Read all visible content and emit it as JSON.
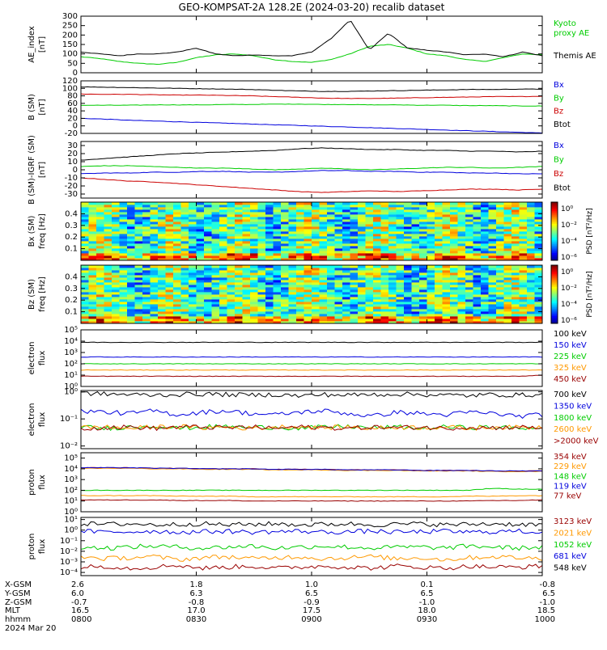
{
  "title": "GEO-KOMPSAT-2A 128.2E (2024-03-20) recalib dataset",
  "colors": {
    "black": "#000000",
    "green": "#00cc00",
    "red": "#cc0000",
    "blue": "#0000dd",
    "orange": "#ff9900",
    "darkred": "#990000",
    "axes": "#000000"
  },
  "chart_data": [
    {
      "id": "ae",
      "type": "line",
      "ylabel": "AE_index\n[nT]",
      "yticks": [
        "300",
        "250",
        "200",
        "150",
        "100",
        "50",
        "0"
      ],
      "ytick_values": [
        300,
        250,
        200,
        150,
        100,
        50,
        0
      ],
      "ylim": [
        0,
        300
      ],
      "x": [
        0,
        5,
        10,
        15,
        20,
        25,
        30,
        35,
        40,
        45,
        50,
        55,
        60,
        65,
        70,
        75,
        80,
        85,
        90,
        95,
        100,
        105,
        110,
        115,
        120
      ],
      "series": [
        {
          "name": "Kyoto\nproxy AE",
          "color": "green",
          "values": [
            85,
            75,
            60,
            50,
            45,
            55,
            80,
            95,
            100,
            90,
            70,
            60,
            55,
            70,
            100,
            140,
            150,
            130,
            100,
            90,
            70,
            60,
            80,
            100,
            95
          ]
        },
        {
          "name": "Themis AE",
          "color": "black",
          "values": [
            110,
            100,
            90,
            100,
            100,
            110,
            130,
            100,
            90,
            95,
            90,
            90,
            110,
            180,
            280,
            120,
            210,
            130,
            120,
            110,
            95,
            100,
            85,
            110,
            90
          ]
        }
      ]
    },
    {
      "id": "bsm",
      "type": "line",
      "ylabel": "B (SM)\n[nT]",
      "yticks": [
        "120",
        "100",
        "80",
        "60",
        "40",
        "20",
        "0",
        "-20"
      ],
      "ytick_values": [
        120,
        100,
        80,
        60,
        40,
        20,
        0,
        -20
      ],
      "ylim": [
        -20,
        120
      ],
      "series": [
        {
          "name": "Bx",
          "color": "blue",
          "values": [
            20,
            18,
            15,
            13,
            11,
            9,
            7,
            5,
            3,
            1,
            -1,
            -3,
            -5,
            -7,
            -9,
            -11,
            -13,
            -15,
            -17,
            -19
          ]
        },
        {
          "name": "By",
          "color": "green",
          "values": [
            55,
            55,
            55,
            56,
            56,
            56,
            57,
            57,
            58,
            58,
            57,
            57,
            56,
            56,
            55,
            55,
            54,
            54,
            53,
            53
          ]
        },
        {
          "name": "Bz",
          "color": "red",
          "values": [
            85,
            84,
            84,
            83,
            82,
            82,
            81,
            80,
            78,
            76,
            74,
            73,
            73,
            74,
            75,
            76,
            77,
            78,
            78,
            79
          ]
        },
        {
          "name": "Btot",
          "color": "black",
          "values": [
            104,
            103,
            102,
            101,
            100,
            99,
            98,
            97,
            95,
            93,
            92,
            92,
            93,
            94,
            95,
            96,
            97,
            97,
            98,
            98
          ]
        }
      ]
    },
    {
      "id": "bdiff",
      "type": "line",
      "ylabel": "B (SM)-IGRF (SM)\n[nT]",
      "yticks": [
        "30",
        "20",
        "10",
        "0",
        "-10",
        "-20",
        "-30"
      ],
      "ytick_values": [
        30,
        20,
        10,
        0,
        -10,
        -20,
        -30
      ],
      "ylim": [
        -35,
        35
      ],
      "series": [
        {
          "name": "Bx",
          "color": "blue",
          "values": [
            -5,
            -4,
            -4,
            -3,
            -3,
            -2,
            -2,
            -3,
            -3,
            -2,
            -1,
            -1,
            -2,
            -2,
            -3,
            -3,
            -4,
            -4,
            -5,
            -5
          ]
        },
        {
          "name": "By",
          "color": "green",
          "values": [
            4,
            5,
            5,
            4,
            3,
            2,
            2,
            1,
            0,
            1,
            2,
            1,
            0,
            1,
            2,
            3,
            3,
            2,
            3,
            4
          ]
        },
        {
          "name": "Bz",
          "color": "red",
          "values": [
            -10,
            -12,
            -14,
            -15,
            -17,
            -19,
            -21,
            -23,
            -25,
            -27,
            -28,
            -27,
            -26,
            -27,
            -26,
            -25,
            -24,
            -24,
            -25,
            -24
          ]
        },
        {
          "name": "Btot",
          "color": "black",
          "values": [
            12,
            14,
            16,
            18,
            20,
            21,
            22,
            23,
            24,
            26,
            27,
            26,
            25,
            25,
            24,
            24,
            23,
            23,
            22,
            23
          ]
        }
      ]
    },
    {
      "id": "spec_bx",
      "type": "heatmap",
      "ylabel": "Bx (SM)\nfreq [Hz]",
      "yticks": [
        "0.4",
        "0.3",
        "0.2",
        "0.1"
      ],
      "ytick_values": [
        0.4,
        0.3,
        0.2,
        0.1
      ],
      "ylim": [
        0.0,
        0.5
      ],
      "colorbar_label": "PSD [nT²/Hz]",
      "colorbar_ticks": [
        "10⁰",
        "10⁻²",
        "10⁻⁴",
        "10⁻⁶"
      ]
    },
    {
      "id": "spec_bz",
      "type": "heatmap",
      "ylabel": "Bz (SM)\nfreq [Hz]",
      "yticks": [
        "0.4",
        "0.3",
        "0.2",
        "0.1"
      ],
      "ytick_values": [
        0.4,
        0.3,
        0.2,
        0.1
      ],
      "ylim": [
        0.0,
        0.5
      ],
      "colorbar_label": "PSD [nT²/Hz]",
      "colorbar_ticks": [
        "10⁰",
        "10⁻²",
        "10⁻⁴",
        "10⁻⁶"
      ]
    },
    {
      "id": "eflux_low",
      "type": "line",
      "log": true,
      "ylabel": "electron\nflux",
      "yticks": [
        "10⁵",
        "10⁴",
        "10³",
        "10²",
        "10¹",
        "10⁰"
      ],
      "ytick_values": [
        5,
        4,
        3,
        2,
        1,
        0
      ],
      "ylim": [
        0,
        5
      ],
      "series": [
        {
          "name": "100 keV",
          "color": "black",
          "values": [
            3.9,
            3.9,
            3.9,
            3.9,
            3.9,
            3.9,
            3.9,
            3.9,
            3.9,
            3.9,
            3.9,
            3.9,
            3.9,
            3.9,
            3.9,
            3.9,
            3.9,
            3.9,
            3.9,
            3.9
          ]
        },
        {
          "name": "150 keV",
          "color": "blue",
          "values": [
            2.6,
            2.6,
            2.6,
            2.6,
            2.6,
            2.6,
            2.6,
            2.6,
            2.6,
            2.6,
            2.6,
            2.6,
            2.6,
            2.6,
            2.6,
            2.6,
            2.6,
            2.6,
            2.6,
            2.6
          ]
        },
        {
          "name": "225 keV",
          "color": "green",
          "values": [
            2.0,
            2.0,
            2.0,
            2.0,
            2.0,
            2.0,
            2.0,
            2.0,
            2.0,
            2.0,
            2.0,
            2.0,
            2.0,
            2.0,
            2.0,
            2.0,
            2.0,
            2.0,
            2.0,
            2.0
          ]
        },
        {
          "name": "325 keV",
          "color": "orange",
          "values": [
            1.45,
            1.45,
            1.45,
            1.45,
            1.45,
            1.45,
            1.45,
            1.45,
            1.45,
            1.45,
            1.45,
            1.45,
            1.45,
            1.45,
            1.45,
            1.45,
            1.45,
            1.45,
            1.45,
            1.45
          ]
        },
        {
          "name": "450 keV",
          "color": "darkred",
          "values": [
            0.9,
            0.9,
            0.9,
            0.9,
            0.9,
            0.9,
            0.9,
            0.9,
            0.9,
            0.9,
            0.9,
            0.9,
            0.9,
            0.9,
            0.9,
            0.9,
            0.9,
            0.9,
            0.9,
            1.0
          ]
        }
      ]
    },
    {
      "id": "eflux_high",
      "type": "line",
      "log": true,
      "ylabel": "electron\nflux",
      "yticks": [
        "10⁰",
        "10⁻¹",
        "10⁻²"
      ],
      "ytick_values": [
        0,
        -1,
        -2
      ],
      "ylim": [
        -2.1,
        0.05
      ],
      "series": [
        {
          "name": "700 keV",
          "color": "black",
          "values": [
            -0.05,
            -0.08,
            -0.1,
            -0.12,
            -0.1,
            -0.08,
            -0.1,
            -0.12,
            -0.1,
            -0.15,
            -0.1,
            -0.12,
            -0.1,
            -0.08,
            -0.1,
            -0.12,
            -0.14,
            -0.1,
            -0.12,
            -0.1
          ]
        },
        {
          "name": "1350 keV",
          "color": "blue",
          "values": [
            -0.7,
            -0.75,
            -0.8,
            -0.7,
            -0.85,
            -0.75,
            -0.7,
            -0.8,
            -0.85,
            -0.75,
            -0.7,
            -0.8,
            -0.9,
            -0.75,
            -0.8,
            -0.85,
            -0.75,
            -0.8,
            -0.9,
            -0.85
          ]
        },
        {
          "name": "1800 keV",
          "color": "green",
          "values": [
            -1.3,
            -1.35,
            -1.3,
            -1.25,
            -1.35,
            -1.3,
            -1.28,
            -1.32,
            -1.3,
            -1.35,
            -1.3,
            -1.28,
            -1.33,
            -1.3,
            -1.35,
            -1.3,
            -1.32,
            -1.3,
            -1.35,
            -1.3
          ]
        },
        {
          "name": "2600 keV",
          "color": "orange",
          "values": [
            -1.32,
            -1.3,
            -1.35,
            -1.3,
            -1.28,
            -1.33,
            -1.3,
            -1.35,
            -1.3,
            -1.28,
            -1.33,
            -1.3,
            -1.35,
            -1.3,
            -1.32,
            -1.3,
            -1.35,
            -1.3,
            -1.32,
            -1.3
          ]
        },
        {
          "name": ">2000 keV",
          "color": "darkred",
          "values": [
            -1.35,
            -1.32,
            -1.3,
            -1.35,
            -1.3,
            -1.3,
            -1.33,
            -1.3,
            -1.35,
            -1.3,
            -1.32,
            -1.35,
            -1.3,
            -1.33,
            -1.3,
            -1.35,
            -1.3,
            -1.33,
            -1.3,
            -1.35
          ]
        }
      ]
    },
    {
      "id": "pflux_low",
      "type": "line",
      "log": true,
      "ylabel": "proton\nflux",
      "yticks": [
        "10⁵",
        "10⁴",
        "10³",
        "10²",
        "10¹",
        "10⁰"
      ],
      "ytick_values": [
        5,
        4,
        3,
        2,
        1,
        0
      ],
      "ylim": [
        0,
        5.5
      ],
      "series": [
        {
          "name": "354 keV",
          "color": "darkred",
          "values": [
            4.1,
            4.1,
            4.1,
            4.05,
            4.05,
            4.0,
            4.0,
            4.0,
            3.95,
            3.95,
            3.95,
            3.9,
            3.9,
            3.9,
            3.85,
            3.85,
            3.85,
            3.8,
            3.8,
            3.8
          ]
        },
        {
          "name": "229 keV",
          "color": "orange",
          "values": [
            4.05,
            4.05,
            4.05,
            4.0,
            4.0,
            3.95,
            3.95,
            3.95,
            3.9,
            3.9,
            3.9,
            3.85,
            3.85,
            3.85,
            3.8,
            3.8,
            3.8,
            3.75,
            3.75,
            3.75
          ]
        },
        {
          "name": "148 keV",
          "color": "green",
          "values": [
            2.0,
            2.0,
            2.0,
            2.0,
            2.0,
            2.0,
            2.0,
            2.0,
            2.0,
            2.0,
            2.0,
            2.0,
            2.0,
            2.0,
            2.0,
            2.0,
            2.0,
            2.2,
            2.1,
            2.1
          ]
        },
        {
          "name": "119 keV",
          "color": "blue",
          "values": [
            4.1,
            4.1,
            4.1,
            4.05,
            4.05,
            4.0,
            4.0,
            4.0,
            3.95,
            3.95,
            3.95,
            3.9,
            3.9,
            3.9,
            3.85,
            3.85,
            3.85,
            3.8,
            3.8,
            3.8
          ]
        },
        {
          "name": "77 keV",
          "color": "darkred",
          "values": [
            1.1,
            1.1,
            1.1,
            1.1,
            1.05,
            1.05,
            1.05,
            1.0,
            1.0,
            1.0,
            1.0,
            1.0,
            1.0,
            1.0,
            1.0,
            1.0,
            1.0,
            1.05,
            1.05,
            1.1
          ]
        },
        {
          "name": "",
          "color": "orange",
          "values": [
            1.5,
            1.5,
            1.5,
            1.5,
            1.45,
            1.45,
            1.45,
            1.4,
            1.4,
            1.4,
            1.4,
            1.4,
            1.4,
            1.4,
            1.4,
            1.4,
            1.45,
            1.45,
            1.5,
            1.5
          ]
        }
      ]
    },
    {
      "id": "pflux_high",
      "type": "line",
      "log": true,
      "ylabel": "proton\nflux",
      "yticks": [
        "10¹",
        "10⁰",
        "10⁻¹",
        "10⁻²",
        "10⁻³",
        "10⁻⁴"
      ],
      "ytick_values": [
        1,
        0,
        -1,
        -2,
        -3,
        -4
      ],
      "ylim": [
        -4.3,
        1.2
      ],
      "series": [
        {
          "name": "3123 keV",
          "color": "darkred",
          "values": [
            -3.5,
            -3.4,
            -3.6,
            -3.5,
            -3.3,
            -3.6,
            -3.5,
            -3.4,
            -3.6,
            -3.5,
            -3.4,
            -3.5,
            -3.6,
            -3.4,
            -3.5,
            -3.6,
            -3.4,
            -3.5,
            -3.5,
            -3.4
          ]
        },
        {
          "name": "2021 keV",
          "color": "orange",
          "values": [
            -2.5,
            -2.7,
            -2.6,
            -2.5,
            -2.8,
            -2.6,
            -2.5,
            -2.7,
            -2.6,
            -2.5,
            -2.7,
            -2.6,
            -2.5,
            -2.7,
            -2.6,
            -2.8,
            -2.6,
            -2.5,
            -2.6,
            -2.7
          ]
        },
        {
          "name": "1052 keV",
          "color": "green",
          "values": [
            -1.6,
            -1.7,
            -1.6,
            -1.5,
            -1.6,
            -1.7,
            -1.6,
            -1.5,
            -1.7,
            -1.6,
            -1.5,
            -1.6,
            -1.7,
            -1.6,
            -1.6,
            -1.7,
            -1.5,
            -1.6,
            -1.7,
            -1.6
          ]
        },
        {
          "name": "681 keV",
          "color": "blue",
          "values": [
            -0.1,
            -0.2,
            -0.15,
            -0.1,
            -0.2,
            -0.15,
            -0.1,
            -0.2,
            -0.15,
            -0.1,
            -0.2,
            -0.15,
            -0.1,
            -0.2,
            -0.15,
            -0.1,
            -0.2,
            -0.15,
            -0.1,
            -0.2
          ]
        },
        {
          "name": "548 keV",
          "color": "black",
          "values": [
            0.6,
            0.55,
            0.6,
            0.5,
            0.55,
            0.6,
            0.5,
            0.55,
            0.6,
            0.5,
            0.55,
            0.6,
            0.5,
            0.55,
            0.6,
            0.5,
            0.55,
            0.6,
            0.55,
            0.5
          ]
        }
      ]
    }
  ],
  "orbit": {
    "labels": [
      "X-GSM",
      "Y-GSM",
      "Z-GSM",
      "MLT",
      "hhmm",
      "2024 Mar 20"
    ],
    "columns": [
      [
        "2.6",
        "6.0",
        "-0.7",
        "16.5",
        "0800"
      ],
      [
        "1.8",
        "6.3",
        "-0.8",
        "17.0",
        "0830"
      ],
      [
        "1.0",
        "6.5",
        "-0.9",
        "17.5",
        "0900"
      ],
      [
        "0.1",
        "6.5",
        "-1.0",
        "18.0",
        "0930"
      ],
      [
        "-0.8",
        "6.5",
        "-1.0",
        "18.5",
        "1000"
      ]
    ]
  }
}
